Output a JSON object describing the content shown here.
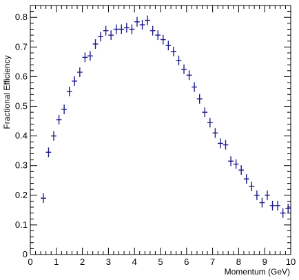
{
  "chart_data": {
    "type": "scatter",
    "xlabel": "Momentum (GeV)",
    "ylabel": "Fractional Efficiency",
    "xlim": [
      0,
      10
    ],
    "ylim": [
      0,
      0.84
    ],
    "x_major_ticks": [
      0,
      1,
      2,
      3,
      4,
      5,
      6,
      7,
      8,
      9,
      10
    ],
    "y_major_ticks": [
      0,
      0.1,
      0.2,
      0.3,
      0.4,
      0.5,
      0.6,
      0.7,
      0.8
    ],
    "x_tick_labels": [
      "0",
      "1",
      "2",
      "3",
      "4",
      "5",
      "6",
      "7",
      "8",
      "9",
      "10"
    ],
    "y_tick_labels": [
      "0",
      "0.1",
      "0.2",
      "0.3",
      "0.4",
      "0.5",
      "0.6",
      "0.7",
      "0.8"
    ],
    "marker_color": "#1c1c8a",
    "grid": false,
    "series": [
      {
        "x": [
          0.5,
          0.7,
          0.9,
          1.1,
          1.3,
          1.5,
          1.7,
          1.9,
          2.1,
          2.3,
          2.5,
          2.7,
          2.9,
          3.1,
          3.3,
          3.5,
          3.7,
          3.9,
          4.1,
          4.3,
          4.5,
          4.7,
          4.9,
          5.1,
          5.3,
          5.5,
          5.7,
          5.9,
          6.1,
          6.3,
          6.5,
          6.7,
          6.9,
          7.1,
          7.3,
          7.5,
          7.7,
          7.9,
          8.1,
          8.3,
          8.5,
          8.7,
          8.9,
          9.1,
          9.3,
          9.5,
          9.7,
          9.9
        ],
        "y": [
          0.19,
          0.345,
          0.4,
          0.455,
          0.49,
          0.55,
          0.585,
          0.615,
          0.665,
          0.67,
          0.71,
          0.735,
          0.755,
          0.74,
          0.76,
          0.76,
          0.765,
          0.76,
          0.785,
          0.775,
          0.79,
          0.755,
          0.74,
          0.725,
          0.705,
          0.685,
          0.655,
          0.625,
          0.605,
          0.565,
          0.525,
          0.48,
          0.445,
          0.41,
          0.375,
          0.37,
          0.315,
          0.305,
          0.285,
          0.255,
          0.23,
          0.2,
          0.175,
          0.2,
          0.165,
          0.165,
          0.14,
          0.155
        ]
      }
    ]
  }
}
